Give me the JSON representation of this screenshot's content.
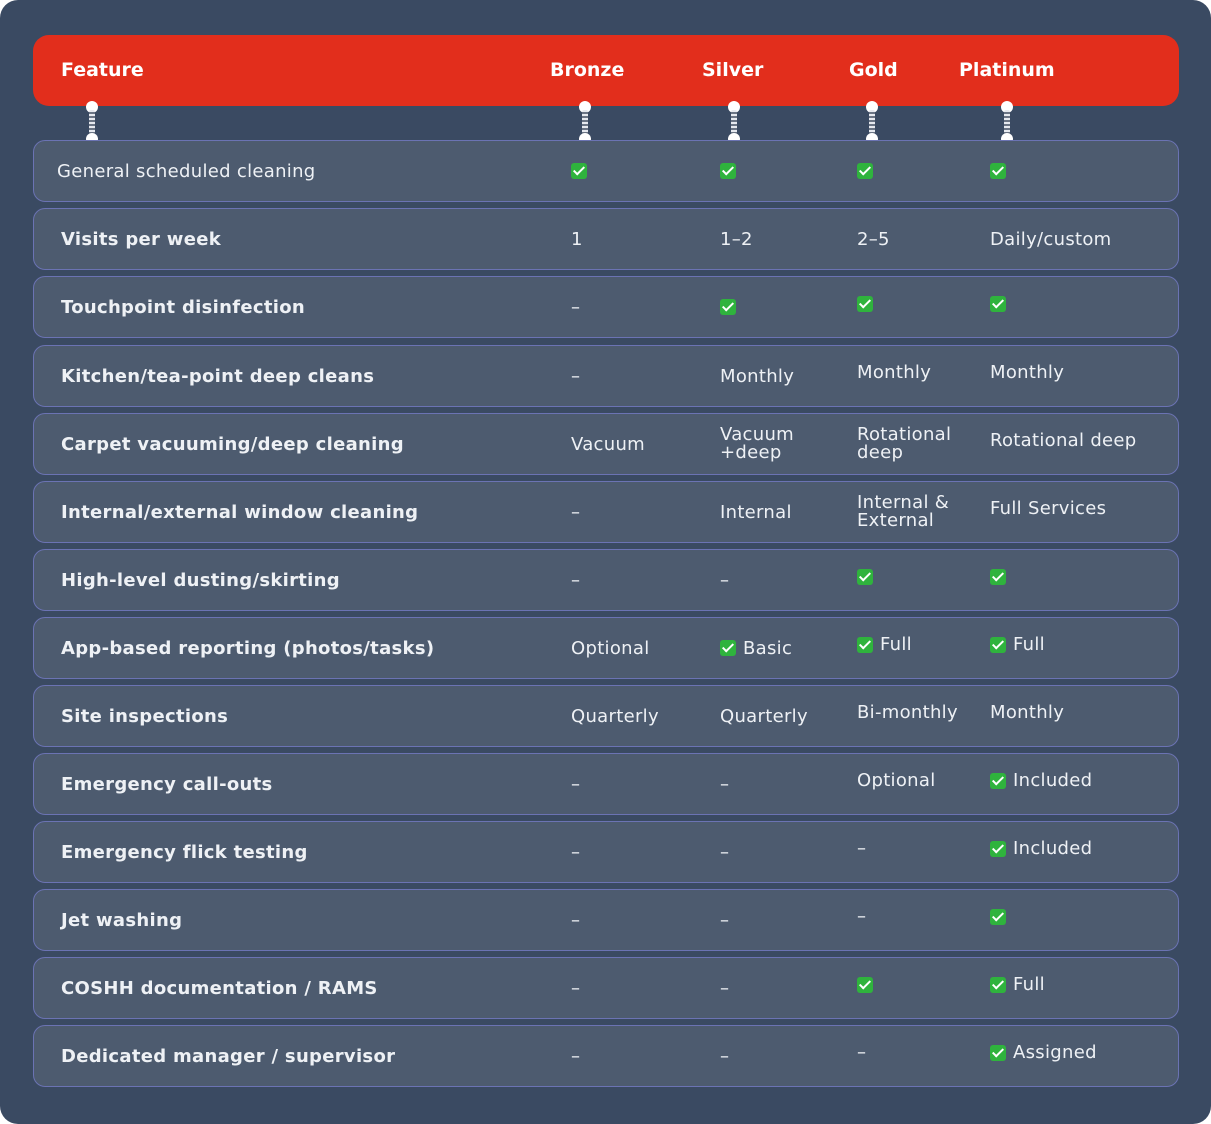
{
  "header": {
    "feature": "Feature",
    "bronze": "Bronze",
    "silver": "Silver",
    "gold": "Gold",
    "platinum": "Platinum"
  },
  "colors": {
    "header_bg": "#e22e1c",
    "panel_bg": "#3a4a62",
    "row_bg": "#4d5b6f",
    "check": "#2fb33d"
  },
  "rows": [
    {
      "feature": "General scheduled cleaning",
      "bronze": "",
      "silver": "",
      "gold": "",
      "platinum": ""
    },
    {
      "feature": "Visits per week",
      "bronze": "1",
      "silver": "1–2",
      "gold": "2–5",
      "platinum": "Daily/custom"
    },
    {
      "feature": "Touchpoint disinfection",
      "bronze": "–",
      "silver": "",
      "gold": "",
      "platinum": ""
    },
    {
      "feature": "Kitchen/tea-point deep cleans",
      "bronze": "–",
      "silver": "Monthly",
      "gold": "Monthly",
      "platinum": "Monthly"
    },
    {
      "feature": "Carpet vacuuming/deep cleaning",
      "bronze": "Vacuum",
      "silver": "Vacuum +deep",
      "gold": "Rotational deep",
      "platinum": "Rotational deep"
    },
    {
      "feature": "Internal/external window cleaning",
      "bronze": "–",
      "silver": "Internal",
      "gold": "Internal & External",
      "platinum": "Full Services"
    },
    {
      "feature": "High-level dusting/skirting",
      "bronze": "–",
      "silver": "–",
      "gold": "",
      "platinum": ""
    },
    {
      "feature": "App-based reporting (photos/tasks)",
      "bronze": "Optional",
      "silver": "Basic",
      "gold": "Full",
      "platinum": "Full"
    },
    {
      "feature": "Site inspections",
      "bronze": "Quarterly",
      "silver": "Quarterly",
      "gold": "Bi-monthly",
      "platinum": "Monthly"
    },
    {
      "feature": "Emergency call-outs",
      "bronze": "–",
      "silver": "–",
      "gold": "Optional",
      "platinum": "Included"
    },
    {
      "feature": "Emergency flick testing",
      "bronze": "–",
      "silver": "–",
      "gold": "–",
      "platinum": "Included"
    },
    {
      "feature": "Jet washing",
      "bronze": "–",
      "silver": "–",
      "gold": "–",
      "platinum": ""
    },
    {
      "feature": "COSHH documentation / RAMS",
      "bronze": "–",
      "silver": "–",
      "gold": "",
      "platinum": "Full"
    },
    {
      "feature": "Dedicated manager / supervisor",
      "bronze": "–",
      "silver": "–",
      "gold": "–",
      "platinum": "Assigned"
    }
  ]
}
